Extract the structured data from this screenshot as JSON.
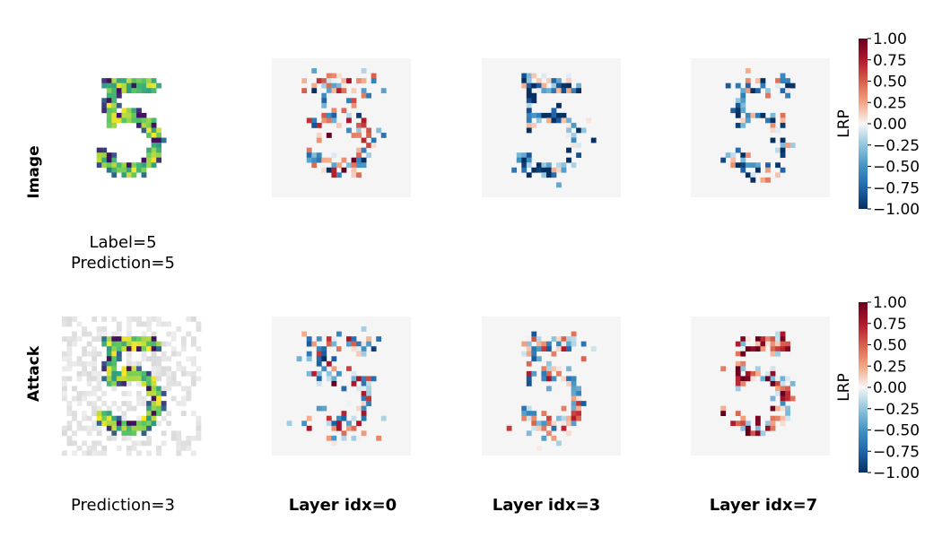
{
  "chart_data": {
    "type": "heatmap",
    "rows": [
      {
        "row_label": "Image",
        "input_caption": [
          "Label=5",
          "Prediction=5"
        ],
        "panels": [
          "input",
          "lrp",
          "lrp",
          "lrp"
        ]
      },
      {
        "row_label": "Attack",
        "input_caption": [
          "Prediction=3"
        ],
        "panels": [
          "input",
          "lrp",
          "lrp",
          "lrp"
        ]
      }
    ],
    "column_titles": [
      "Layer idx=0",
      "Layer idx=3",
      "Layer idx=7"
    ],
    "colorbar": {
      "label": "LRP",
      "range": [
        -1.0,
        1.0
      ],
      "ticks": [
        "1.00",
        "0.75",
        "0.50",
        "0.25",
        "0.00",
        "−0.25",
        "−0.50",
        "−0.75",
        "−1.00"
      ],
      "cmap": "RdBu_r"
    },
    "grid": [
      28,
      28
    ],
    "digit": "5"
  }
}
